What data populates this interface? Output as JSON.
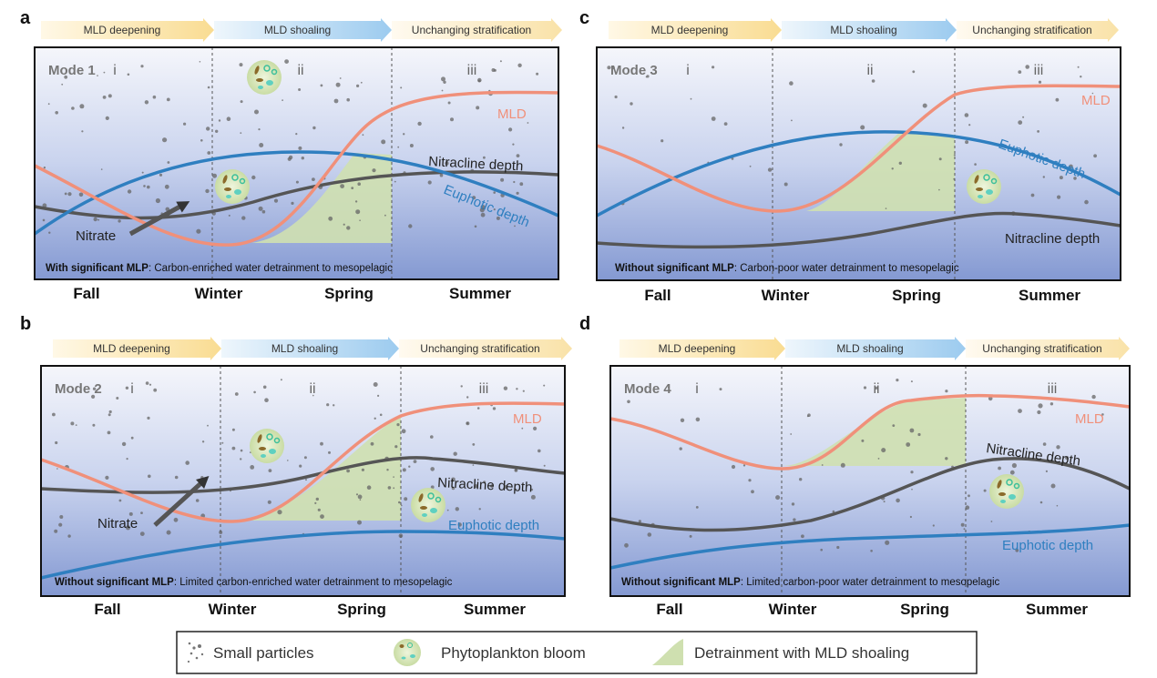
{
  "stages": [
    "MLD deepening",
    "MLD shoaling",
    "Unchanging stratification"
  ],
  "seasons": [
    "Fall",
    "Winter",
    "Spring",
    "Summer"
  ],
  "phases": [
    "i",
    "ii",
    "iii"
  ],
  "curve_labels": {
    "mld": "MLD",
    "nitracline": "Nitracline depth",
    "euphotic": "Euphotic depth",
    "nitrate": "Nitrate"
  },
  "colors": {
    "mld": "#f0907a",
    "euphotic": "#2f7fc0",
    "nitracline": "#555555",
    "detrainment": "#cfe0b0"
  },
  "panels": [
    {
      "letter": "a",
      "mode": "Mode 1",
      "caption_bold": "With significant MLP",
      "caption_rest": ": Carbon-enriched water detrainment to mesopelagic"
    },
    {
      "letter": "b",
      "mode": "Mode 2",
      "caption_bold": "Without significant MLP",
      "caption_rest": ": Limited carbon-enriched water detrainment to mesopelagic"
    },
    {
      "letter": "c",
      "mode": "Mode 3",
      "caption_bold": "Without significant MLP",
      "caption_rest": ": Carbon-poor water detrainment to mesopelagic"
    },
    {
      "letter": "d",
      "mode": "Mode 4",
      "caption_bold": "Without significant MLP",
      "caption_rest": ": Limited carbon-poor water detrainment to mesopelagic"
    }
  ],
  "legend": {
    "particles": "Small particles",
    "bloom": "Phytoplankton bloom",
    "detrainment": "Detrainment with MLD shoaling"
  }
}
